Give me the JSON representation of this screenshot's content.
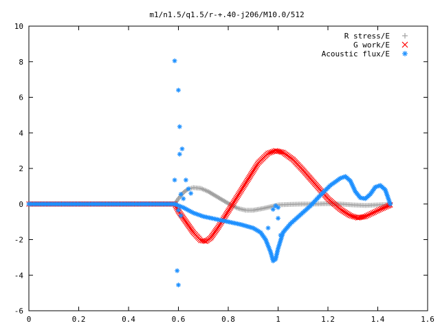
{
  "chart_data": {
    "type": "scatter",
    "title": "m1/n1.5/q1.5/r-+.40-j206/M10.0/512",
    "xlabel": "",
    "ylabel": "",
    "xlim": [
      0,
      1.6
    ],
    "ylim": [
      -6,
      10
    ],
    "x_ticks": [
      0,
      0.2,
      0.4,
      0.6,
      0.8,
      1,
      1.2,
      1.4,
      1.6
    ],
    "x_tick_labels": [
      "0",
      "0.2",
      "0.4",
      "0.6",
      "0.8",
      "1",
      "1.2",
      "1.4",
      "1.6"
    ],
    "y_ticks": [
      -6,
      -4,
      -2,
      0,
      2,
      4,
      6,
      8,
      10
    ],
    "y_tick_labels": [
      "-6",
      "-4",
      "-2",
      "0",
      "2",
      "4",
      "6",
      "8",
      "10"
    ],
    "grid": false,
    "legend_position": "top-right",
    "series": [
      {
        "name": "R stress/E",
        "marker": "plus",
        "color": "#a0a0a0",
        "points": [
          [
            0.0,
            0.0
          ],
          [
            0.585,
            0.0
          ],
          [
            0.6,
            0.3
          ],
          [
            0.62,
            0.65
          ],
          [
            0.64,
            0.85
          ],
          [
            0.66,
            0.92
          ],
          [
            0.69,
            0.88
          ],
          [
            0.72,
            0.7
          ],
          [
            0.75,
            0.45
          ],
          [
            0.78,
            0.2
          ],
          [
            0.81,
            -0.05
          ],
          [
            0.84,
            -0.25
          ],
          [
            0.87,
            -0.35
          ],
          [
            0.9,
            -0.35
          ],
          [
            0.94,
            -0.25
          ],
          [
            0.98,
            -0.12
          ],
          [
            1.0,
            -0.05
          ],
          [
            1.05,
            -0.02
          ],
          [
            1.1,
            0.0
          ],
          [
            1.15,
            0.0
          ],
          [
            1.2,
            0.02
          ],
          [
            1.25,
            0.0
          ],
          [
            1.3,
            -0.05
          ],
          [
            1.35,
            -0.08
          ],
          [
            1.4,
            -0.05
          ],
          [
            1.45,
            -0.02
          ]
        ]
      },
      {
        "name": "G work/E",
        "marker": "cross",
        "color": "#ff0000",
        "points": [
          [
            0.0,
            0.0
          ],
          [
            0.585,
            0.0
          ],
          [
            0.6,
            -0.4
          ],
          [
            0.63,
            -1.0
          ],
          [
            0.66,
            -1.6
          ],
          [
            0.69,
            -2.05
          ],
          [
            0.71,
            -2.1
          ],
          [
            0.73,
            -1.9
          ],
          [
            0.76,
            -1.3
          ],
          [
            0.8,
            -0.4
          ],
          [
            0.84,
            0.5
          ],
          [
            0.88,
            1.4
          ],
          [
            0.92,
            2.3
          ],
          [
            0.96,
            2.85
          ],
          [
            0.99,
            3.0
          ],
          [
            1.02,
            2.9
          ],
          [
            1.06,
            2.5
          ],
          [
            1.1,
            1.9
          ],
          [
            1.15,
            1.1
          ],
          [
            1.2,
            0.3
          ],
          [
            1.25,
            -0.3
          ],
          [
            1.29,
            -0.65
          ],
          [
            1.32,
            -0.78
          ],
          [
            1.35,
            -0.7
          ],
          [
            1.38,
            -0.5
          ],
          [
            1.41,
            -0.3
          ],
          [
            1.44,
            -0.12
          ],
          [
            1.45,
            -0.05
          ]
        ]
      },
      {
        "name": "Acoustic flux/E",
        "marker": "star",
        "color": "#1e90ff",
        "points": [
          [
            0.0,
            0.0
          ],
          [
            0.585,
            0.0
          ],
          [
            0.62,
            -0.2
          ],
          [
            0.66,
            -0.5
          ],
          [
            0.7,
            -0.7
          ],
          [
            0.75,
            -0.85
          ],
          [
            0.8,
            -1.0
          ],
          [
            0.85,
            -1.15
          ],
          [
            0.9,
            -1.35
          ],
          [
            0.93,
            -1.6
          ],
          [
            0.95,
            -2.0
          ],
          [
            0.97,
            -2.7
          ],
          [
            0.98,
            -3.2
          ],
          [
            0.99,
            -3.1
          ],
          [
            1.0,
            -2.5
          ],
          [
            1.02,
            -1.6
          ],
          [
            1.05,
            -1.1
          ],
          [
            1.09,
            -0.6
          ],
          [
            1.13,
            -0.1
          ],
          [
            1.17,
            0.5
          ],
          [
            1.21,
            1.05
          ],
          [
            1.25,
            1.45
          ],
          [
            1.27,
            1.55
          ],
          [
            1.29,
            1.3
          ],
          [
            1.31,
            0.7
          ],
          [
            1.33,
            0.35
          ],
          [
            1.35,
            0.3
          ],
          [
            1.37,
            0.55
          ],
          [
            1.39,
            0.95
          ],
          [
            1.41,
            1.05
          ],
          [
            1.43,
            0.8
          ],
          [
            1.45,
            0.0
          ]
        ],
        "scatter_points": [
          [
            0.585,
            8.05
          ],
          [
            0.6,
            6.4
          ],
          [
            0.605,
            4.35
          ],
          [
            0.615,
            3.1
          ],
          [
            0.605,
            2.8
          ],
          [
            0.585,
            1.35
          ],
          [
            0.63,
            1.35
          ],
          [
            0.61,
            0.55
          ],
          [
            0.62,
            0.3
          ],
          [
            0.6,
            -0.35
          ],
          [
            0.61,
            -0.65
          ],
          [
            0.595,
            -3.75
          ],
          [
            0.6,
            -4.55
          ],
          [
            0.64,
            0.85
          ],
          [
            0.65,
            0.6
          ],
          [
            0.98,
            -0.3
          ],
          [
            0.99,
            -0.1
          ],
          [
            1.0,
            -0.2
          ],
          [
            1.0,
            -0.8
          ],
          [
            0.96,
            -1.35
          ],
          [
            1.01,
            -1.75
          ]
        ]
      }
    ]
  }
}
